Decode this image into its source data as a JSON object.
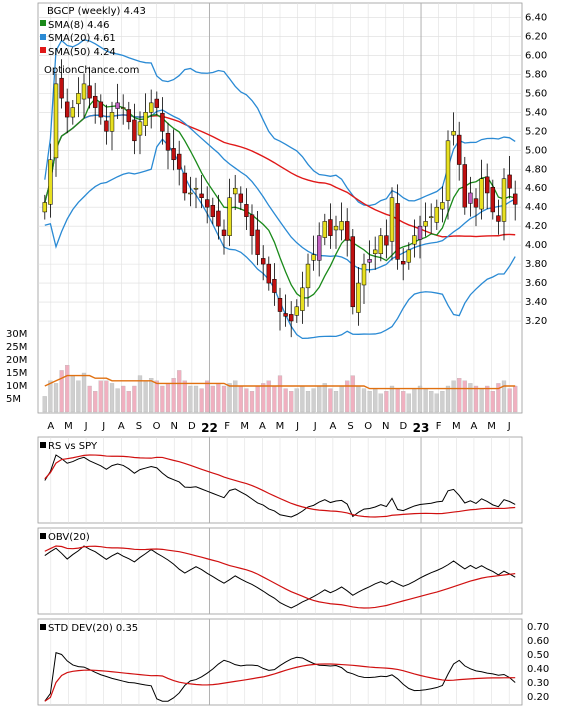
{
  "chart_data": {
    "type": "candlestick",
    "period": "weekly",
    "header": {
      "title": "BGCP (weekly) 4.43",
      "legend": [
        {
          "label": "SMA(8) 4.46",
          "color": "#1a8a1a"
        },
        {
          "label": "SMA(20) 4.61",
          "color": "#2a8ad4"
        },
        {
          "label": "SMA(50) 4.24",
          "color": "#e01818"
        }
      ],
      "source": "OptionChance.com"
    },
    "colors": {
      "up": "#e8e020",
      "down": "#c01010",
      "body_alt": "#c060c0",
      "volume_up": "#f0b0c0",
      "volume_down": "#cfcfcf",
      "ma_vol": "#e07010",
      "bollinger": "#2a8ad4"
    },
    "price_axis": {
      "min": 3.0,
      "max": 6.5,
      "ticks": [
        "6.40",
        "6.20",
        "6.00",
        "5.80",
        "5.60",
        "5.40",
        "5.20",
        "5.00",
        "4.80",
        "4.60",
        "4.40",
        "4.20",
        "4.00",
        "3.80",
        "3.60",
        "3.40",
        "3.20"
      ]
    },
    "volume_axis": {
      "ticks": [
        "30M",
        "25M",
        "20M",
        "15M",
        "10M",
        "5M"
      ]
    },
    "x_labels": [
      "A",
      "M",
      "J",
      "J",
      "A",
      "S",
      "O",
      "N",
      "D",
      "22",
      "F",
      "M",
      "A",
      "M",
      "J",
      "J",
      "A",
      "S",
      "O",
      "N",
      "D",
      "23",
      "F",
      "M",
      "A",
      "M",
      "J"
    ],
    "bold_labels": [
      "22",
      "23"
    ],
    "close": [
      4.45,
      4.9,
      5.7,
      5.55,
      5.35,
      5.45,
      5.6,
      5.7,
      5.55,
      5.45,
      5.35,
      5.2,
      5.4,
      5.5,
      5.45,
      5.3,
      5.1,
      5.3,
      5.4,
      5.5,
      5.45,
      5.2,
      5.0,
      4.9,
      4.8,
      4.55,
      4.55,
      4.6,
      4.5,
      4.4,
      4.3,
      4.2,
      4.1,
      4.5,
      4.6,
      4.45,
      4.3,
      4.1,
      3.9,
      3.8,
      3.6,
      3.5,
      3.3,
      3.25,
      3.2,
      3.35,
      3.55,
      3.8,
      3.9,
      4.1,
      4.25,
      4.1,
      4.2,
      4.25,
      4.05,
      3.35,
      3.6,
      3.8,
      3.85,
      3.95,
      4.1,
      4.0,
      4.5,
      3.85,
      3.8,
      3.95,
      4.1,
      4.2,
      4.25,
      4.3,
      4.4,
      4.45,
      5.1,
      5.2,
      4.85,
      4.4,
      4.55,
      4.4,
      4.7,
      4.55,
      4.35,
      4.25,
      4.7,
      4.6,
      4.43
    ],
    "volume_m": [
      6,
      12,
      11,
      16,
      18,
      14,
      12,
      15,
      10,
      8,
      12,
      12,
      11,
      9,
      10,
      8,
      10,
      14,
      12,
      13,
      12,
      10,
      11,
      13,
      16,
      12,
      10,
      10,
      9,
      12,
      10,
      11,
      10,
      11,
      12,
      10,
      9,
      8,
      10,
      11,
      12,
      10,
      14,
      9,
      8,
      9,
      10,
      8,
      9,
      10,
      11,
      9,
      8,
      10,
      12,
      14,
      10,
      9,
      8,
      9,
      7,
      8,
      10,
      9,
      8,
      7,
      9,
      10,
      9,
      8,
      7,
      8,
      10,
      12,
      13,
      12,
      11,
      10,
      9,
      10,
      8,
      11,
      12,
      9,
      10
    ],
    "ma_volume_m": [
      10,
      11,
      12,
      13,
      14,
      14,
      14,
      14,
      14,
      13,
      13,
      13,
      12,
      12,
      12,
      12,
      12,
      12,
      12,
      12,
      11,
      11,
      11,
      11,
      11,
      11,
      11,
      11,
      11,
      11,
      11,
      11,
      11,
      10,
      10,
      10,
      10,
      10,
      10,
      10,
      10,
      10,
      10,
      10,
      10,
      10,
      10,
      10,
      10,
      10,
      10,
      10,
      10,
      10,
      10,
      10,
      10,
      10,
      9,
      9,
      9,
      9,
      9,
      9,
      9,
      9,
      9,
      9,
      9,
      9,
      9,
      9,
      9,
      9,
      9,
      9,
      9,
      9,
      9,
      9,
      9,
      9,
      10,
      10,
      10
    ],
    "indicators": [
      {
        "label": "RS vs SPY",
        "ticks": []
      },
      {
        "label": "OBV(20)",
        "ticks": []
      },
      {
        "label": "STD DEV(20) 0.35",
        "ticks": [
          "0.70",
          "0.60",
          "0.50",
          "0.40",
          "0.30",
          "0.20"
        ],
        "min": 0.15,
        "max": 0.75
      }
    ]
  }
}
